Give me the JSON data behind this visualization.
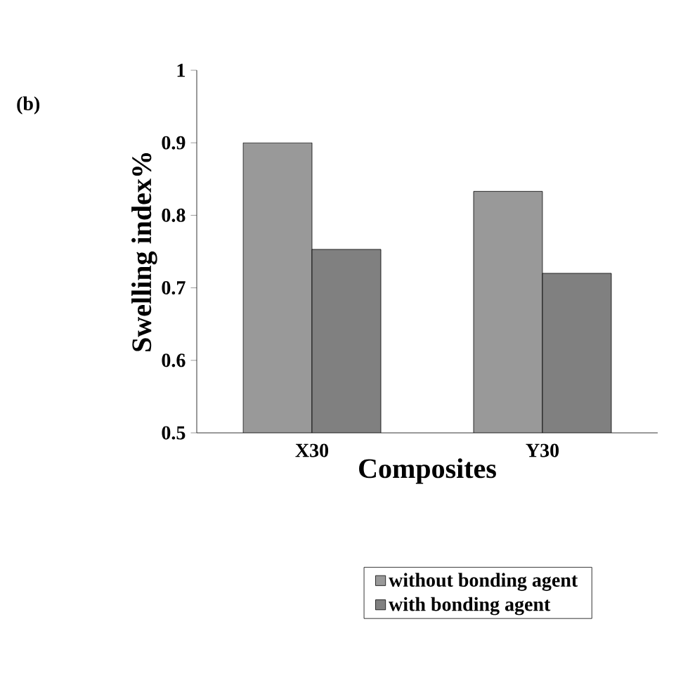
{
  "chart_data": {
    "type": "bar",
    "xlabel": "Composites",
    "ylabel": "Swelling index%",
    "annotations": [
      "(b)"
    ],
    "categories": [
      "X30",
      "Y30"
    ],
    "series": [
      {
        "name": "without bonding agent",
        "color": "#999999",
        "values": [
          0.9,
          0.833
        ]
      },
      {
        "name": "with bonding agent",
        "color": "#808080",
        "values": [
          0.753,
          0.72
        ]
      }
    ],
    "ylim": [
      0.5,
      1
    ],
    "yticks": [
      0.5,
      0.6,
      0.7,
      0.8,
      0.9,
      1
    ],
    "grid": false,
    "legend": "bottom"
  }
}
